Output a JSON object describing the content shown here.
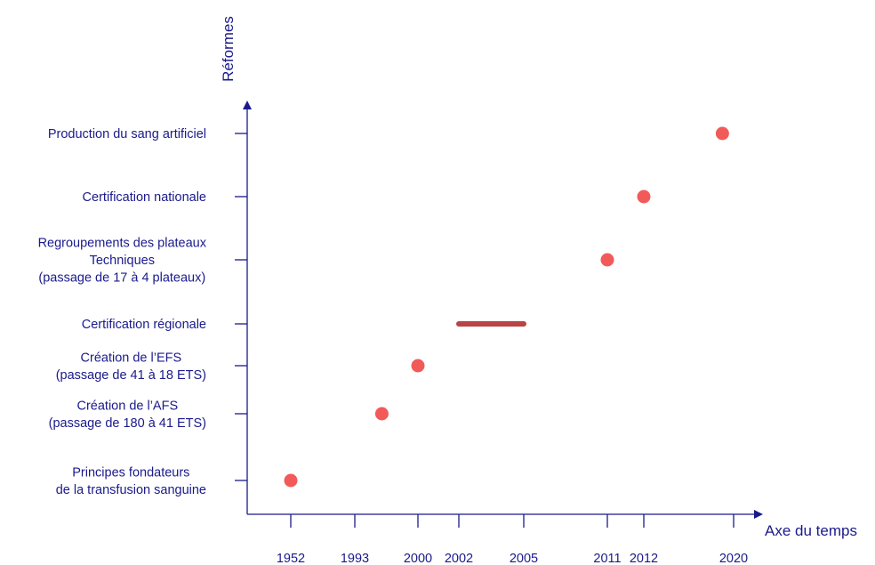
{
  "axis": {
    "y_label": "Réformes",
    "x_label": "Axe du temps",
    "color": "#1a1a8c"
  },
  "chart_data": {
    "type": "scatter",
    "ylabel": "Réformes",
    "xlabel": "Axe du temps",
    "x_ticks": [
      "1952",
      "1993",
      "2000",
      "2002",
      "2005",
      "2011",
      "2012",
      "2020"
    ],
    "y_categories": [
      {
        "lines": [
          "Principes fondateurs",
          "de la transfusion sanguine"
        ]
      },
      {
        "lines": [
          "Création de l’AFS",
          "(passage de 180 à 41 ETS)"
        ]
      },
      {
        "lines": [
          "Création de l’EFS",
          "(passage de 41 à 18 ETS)"
        ]
      },
      {
        "lines": [
          "Certification régionale"
        ]
      },
      {
        "lines": [
          "Regroupements des plateaux",
          "Techniques",
          "(passage de 17 à 4 plateaux)"
        ]
      },
      {
        "lines": [
          "Certification nationale"
        ]
      },
      {
        "lines": [
          "Production du sang artificiel"
        ]
      }
    ],
    "points": [
      {
        "category": 0,
        "x": 1952
      },
      {
        "category": 1,
        "x": 1996
      },
      {
        "category": 2,
        "x": 2000
      },
      {
        "category": 4,
        "x": 2011
      },
      {
        "category": 5,
        "x": 2012
      },
      {
        "category": 6,
        "x": 2019
      }
    ],
    "ranges": [
      {
        "category": 3,
        "start": 2002,
        "end": 2005
      }
    ],
    "colors": {
      "point": "#f25a5a",
      "range": "#b84444"
    }
  }
}
